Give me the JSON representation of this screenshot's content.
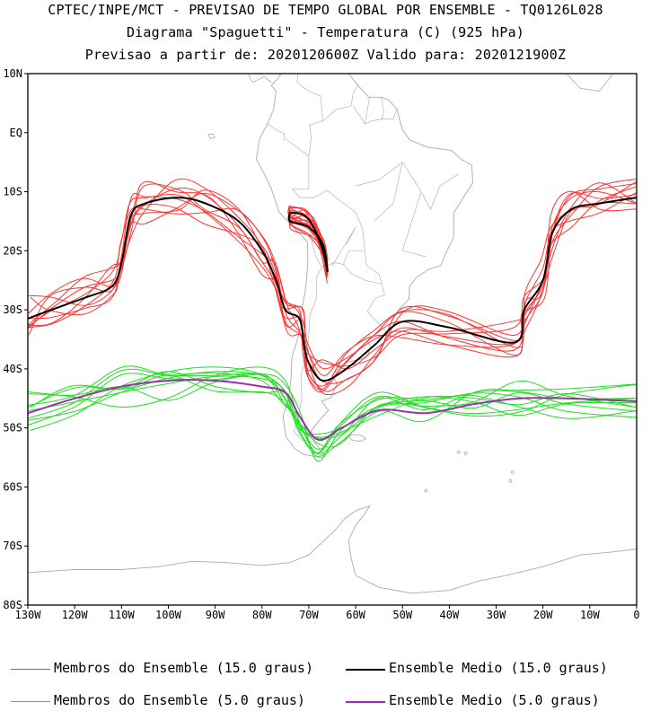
{
  "title": {
    "line1": "CPTEC/INPE/MCT - PREVISAO DE TEMPO GLOBAL POR ENSEMBLE - TQ0126L028",
    "line2": "Diagrama \"Spaguetti\" - Temperatura (C) (925 hPa)",
    "line3": "Previsao a partir de: 2020120600Z  Valido para: 2020121900Z"
  },
  "axes": {
    "lat_labels": [
      "10N",
      "EQ",
      "10S",
      "20S",
      "30S",
      "40S",
      "50S",
      "60S",
      "70S",
      "80S"
    ],
    "lon_labels": [
      "130W",
      "120W",
      "110W",
      "100W",
      "90W",
      "80W",
      "70W",
      "60W",
      "50W",
      "40W",
      "30W",
      "20W",
      "10W",
      "0"
    ],
    "lat_range": [
      -80,
      10
    ],
    "lon_range": [
      -130,
      0
    ]
  },
  "legend": {
    "members_15": "Membros do Ensemble (15.0 graus)",
    "mean_15": "Ensemble Medio (15.0 graus)",
    "members_5": "Membros do Ensemble (5.0 graus)",
    "mean_5": "Ensemble Medio (5.0 graus)"
  },
  "colors": {
    "members_15": "#ff3333",
    "mean_15": "#000000",
    "members_5": "#22dd22",
    "mean_5": "#9a2fb0",
    "coast": "#aaaaaa"
  },
  "chart_data": {
    "type": "spaghetti-contour",
    "variable": "Temperatura (C) 925 hPa",
    "contour_levels_c": [
      15.0,
      5.0
    ],
    "mean_15_lonlat": [
      [
        -130,
        -31.5
      ],
      [
        -125,
        -30
      ],
      [
        -118,
        -28
      ],
      [
        -112,
        -26
      ],
      [
        -110,
        -22
      ],
      [
        -108,
        -14
      ],
      [
        -105,
        -12
      ],
      [
        -98,
        -11
      ],
      [
        -92,
        -12
      ],
      [
        -85,
        -15
      ],
      [
        -80,
        -20
      ],
      [
        -77,
        -25
      ],
      [
        -75,
        -30
      ],
      [
        -72,
        -31.5
      ],
      [
        -71,
        -36
      ],
      [
        -70,
        -39
      ],
      [
        -67,
        -42
      ],
      [
        -62,
        -40
      ],
      [
        -56,
        -36
      ],
      [
        -50,
        -32
      ],
      [
        -40,
        -33
      ],
      [
        -26,
        -35.5
      ],
      [
        -24,
        -30
      ],
      [
        -20,
        -25
      ],
      [
        -18,
        -17
      ],
      [
        -14,
        -13
      ],
      [
        -8,
        -12
      ],
      [
        0,
        -11
      ]
    ],
    "mean_15_andes_lonlat": [
      [
        -74,
        -13.5
      ],
      [
        -71,
        -14
      ],
      [
        -69,
        -16
      ],
      [
        -67,
        -20
      ],
      [
        -66,
        -23.5
      ],
      [
        -67,
        -19
      ],
      [
        -70,
        -16
      ],
      [
        -74,
        -15
      ],
      [
        -74,
        -13.5
      ]
    ],
    "mean_5_lonlat": [
      [
        -130,
        -47.5
      ],
      [
        -120,
        -45
      ],
      [
        -110,
        -43
      ],
      [
        -100,
        -42
      ],
      [
        -90,
        -42
      ],
      [
        -80,
        -43
      ],
      [
        -75,
        -44
      ],
      [
        -72,
        -48
      ],
      [
        -68,
        -52
      ],
      [
        -63,
        -50
      ],
      [
        -55,
        -47
      ],
      [
        -45,
        -47.5
      ],
      [
        -35,
        -46
      ],
      [
        -25,
        -45
      ],
      [
        -15,
        -45
      ],
      [
        0,
        -45.5
      ]
    ],
    "members_15_count": 10,
    "members_5_count": 10
  }
}
